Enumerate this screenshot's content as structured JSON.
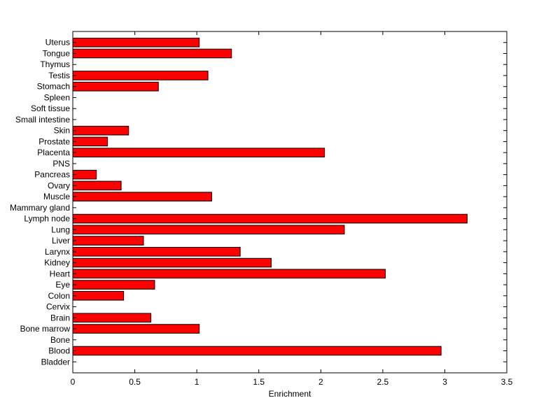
{
  "chart_data": {
    "type": "bar",
    "orientation": "horizontal",
    "xlabel": "Enrichment",
    "ylabel": "",
    "title": "",
    "xlim": [
      0,
      3.5
    ],
    "xticks": [
      "0",
      "0.5",
      "1",
      "1.5",
      "2",
      "2.5",
      "3",
      "3.5"
    ],
    "grid": false,
    "bar_color": "#ff0000",
    "categories": [
      "Uterus",
      "Tongue",
      "Thymus",
      "Testis",
      "Stomach",
      "Spleen",
      "Soft tissue",
      "Small intestine",
      "Skin",
      "Prostate",
      "Placenta",
      "PNS",
      "Pancreas",
      "Ovary",
      "Muscle",
      "Mammary gland",
      "Lymph node",
      "Lung",
      "Liver",
      "Larynx",
      "Kidney",
      "Heart",
      "Eye",
      "Colon",
      "Cervix",
      "Brain",
      "Bone marrow",
      "Bone",
      "Blood",
      "Bladder"
    ],
    "values": [
      1.02,
      1.28,
      0,
      1.09,
      0.69,
      0,
      0,
      0,
      0.45,
      0.28,
      2.03,
      0,
      0.19,
      0.39,
      1.12,
      0,
      3.18,
      2.19,
      0.57,
      1.35,
      1.6,
      2.52,
      0.66,
      0.41,
      0,
      0.63,
      1.02,
      0,
      2.97,
      0
    ]
  }
}
